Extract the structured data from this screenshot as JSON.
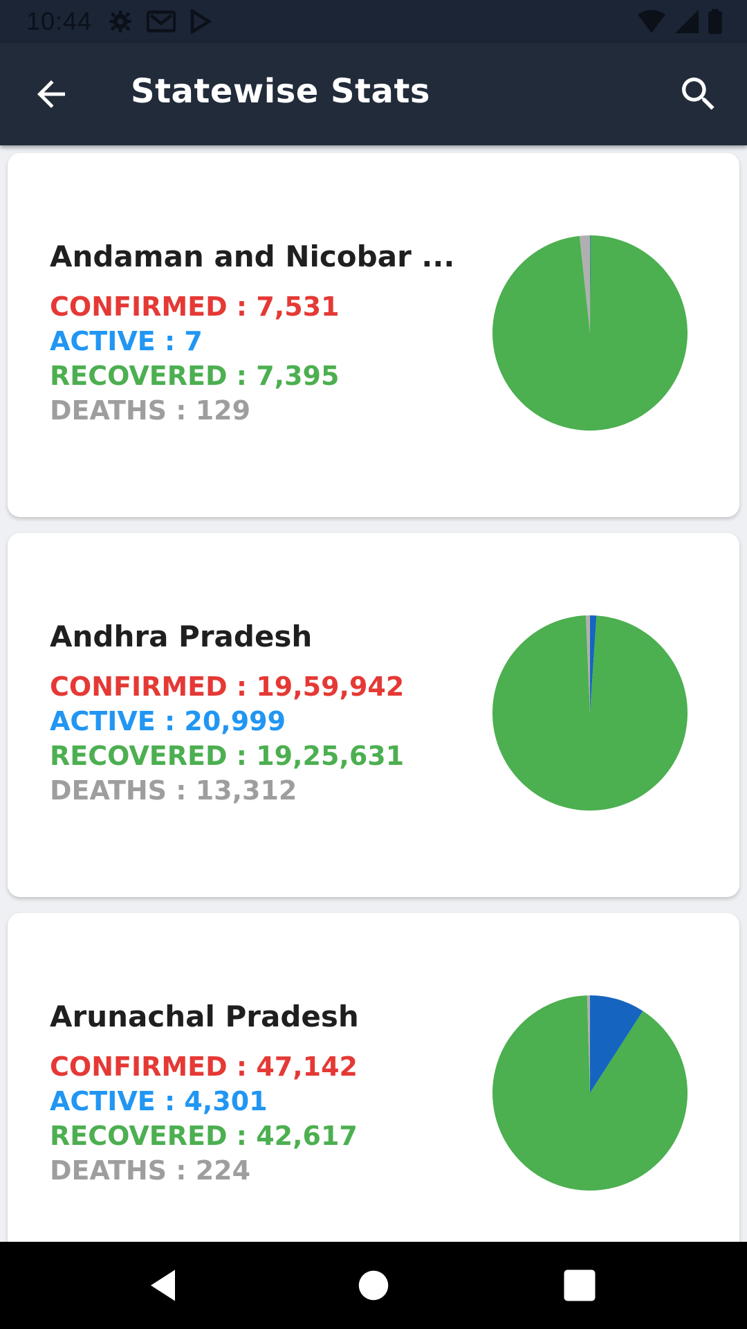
{
  "status_bar": {
    "time": "10:44",
    "icons_left": [
      "settings-icon",
      "gmail-icon",
      "play-store-icon"
    ],
    "icons_right": [
      "wifi-icon",
      "signal-icon",
      "battery-icon"
    ]
  },
  "app_bar": {
    "title": "Statewise Stats",
    "back_icon": "arrow-back-icon",
    "search_icon": "search-icon"
  },
  "colors": {
    "confirmed": "#e53935",
    "active": "#2196f3",
    "recovered": "#4caf50",
    "deaths": "#9e9e9e",
    "pie_active": "#1565c0",
    "pie_recovered": "#4caf50",
    "pie_deaths": "#b0b0b0"
  },
  "labels": {
    "confirmed": "CONFIRMED : ",
    "active": "ACTIVE : ",
    "recovered": "RECOVERED : ",
    "deaths": "DEATHS : "
  },
  "states": [
    {
      "name": "Andaman and Nicobar ...",
      "confirmed": "7,531",
      "active": "7",
      "recovered": "7,395",
      "deaths": "129",
      "pie": {
        "active": 7,
        "recovered": 7395,
        "deaths": 129
      }
    },
    {
      "name": "Andhra Pradesh",
      "confirmed": "19,59,942",
      "active": "20,999",
      "recovered": "19,25,631",
      "deaths": "13,312",
      "pie": {
        "active": 20999,
        "recovered": 1925631,
        "deaths": 13312
      }
    },
    {
      "name": "Arunachal Pradesh",
      "confirmed": "47,142",
      "active": "4,301",
      "recovered": "42,617",
      "deaths": "224",
      "pie": {
        "active": 4301,
        "recovered": 42617,
        "deaths": 224
      }
    }
  ],
  "nav_bar": {
    "back": "nav-back-icon",
    "home": "nav-home-icon",
    "recents": "nav-recents-icon"
  }
}
